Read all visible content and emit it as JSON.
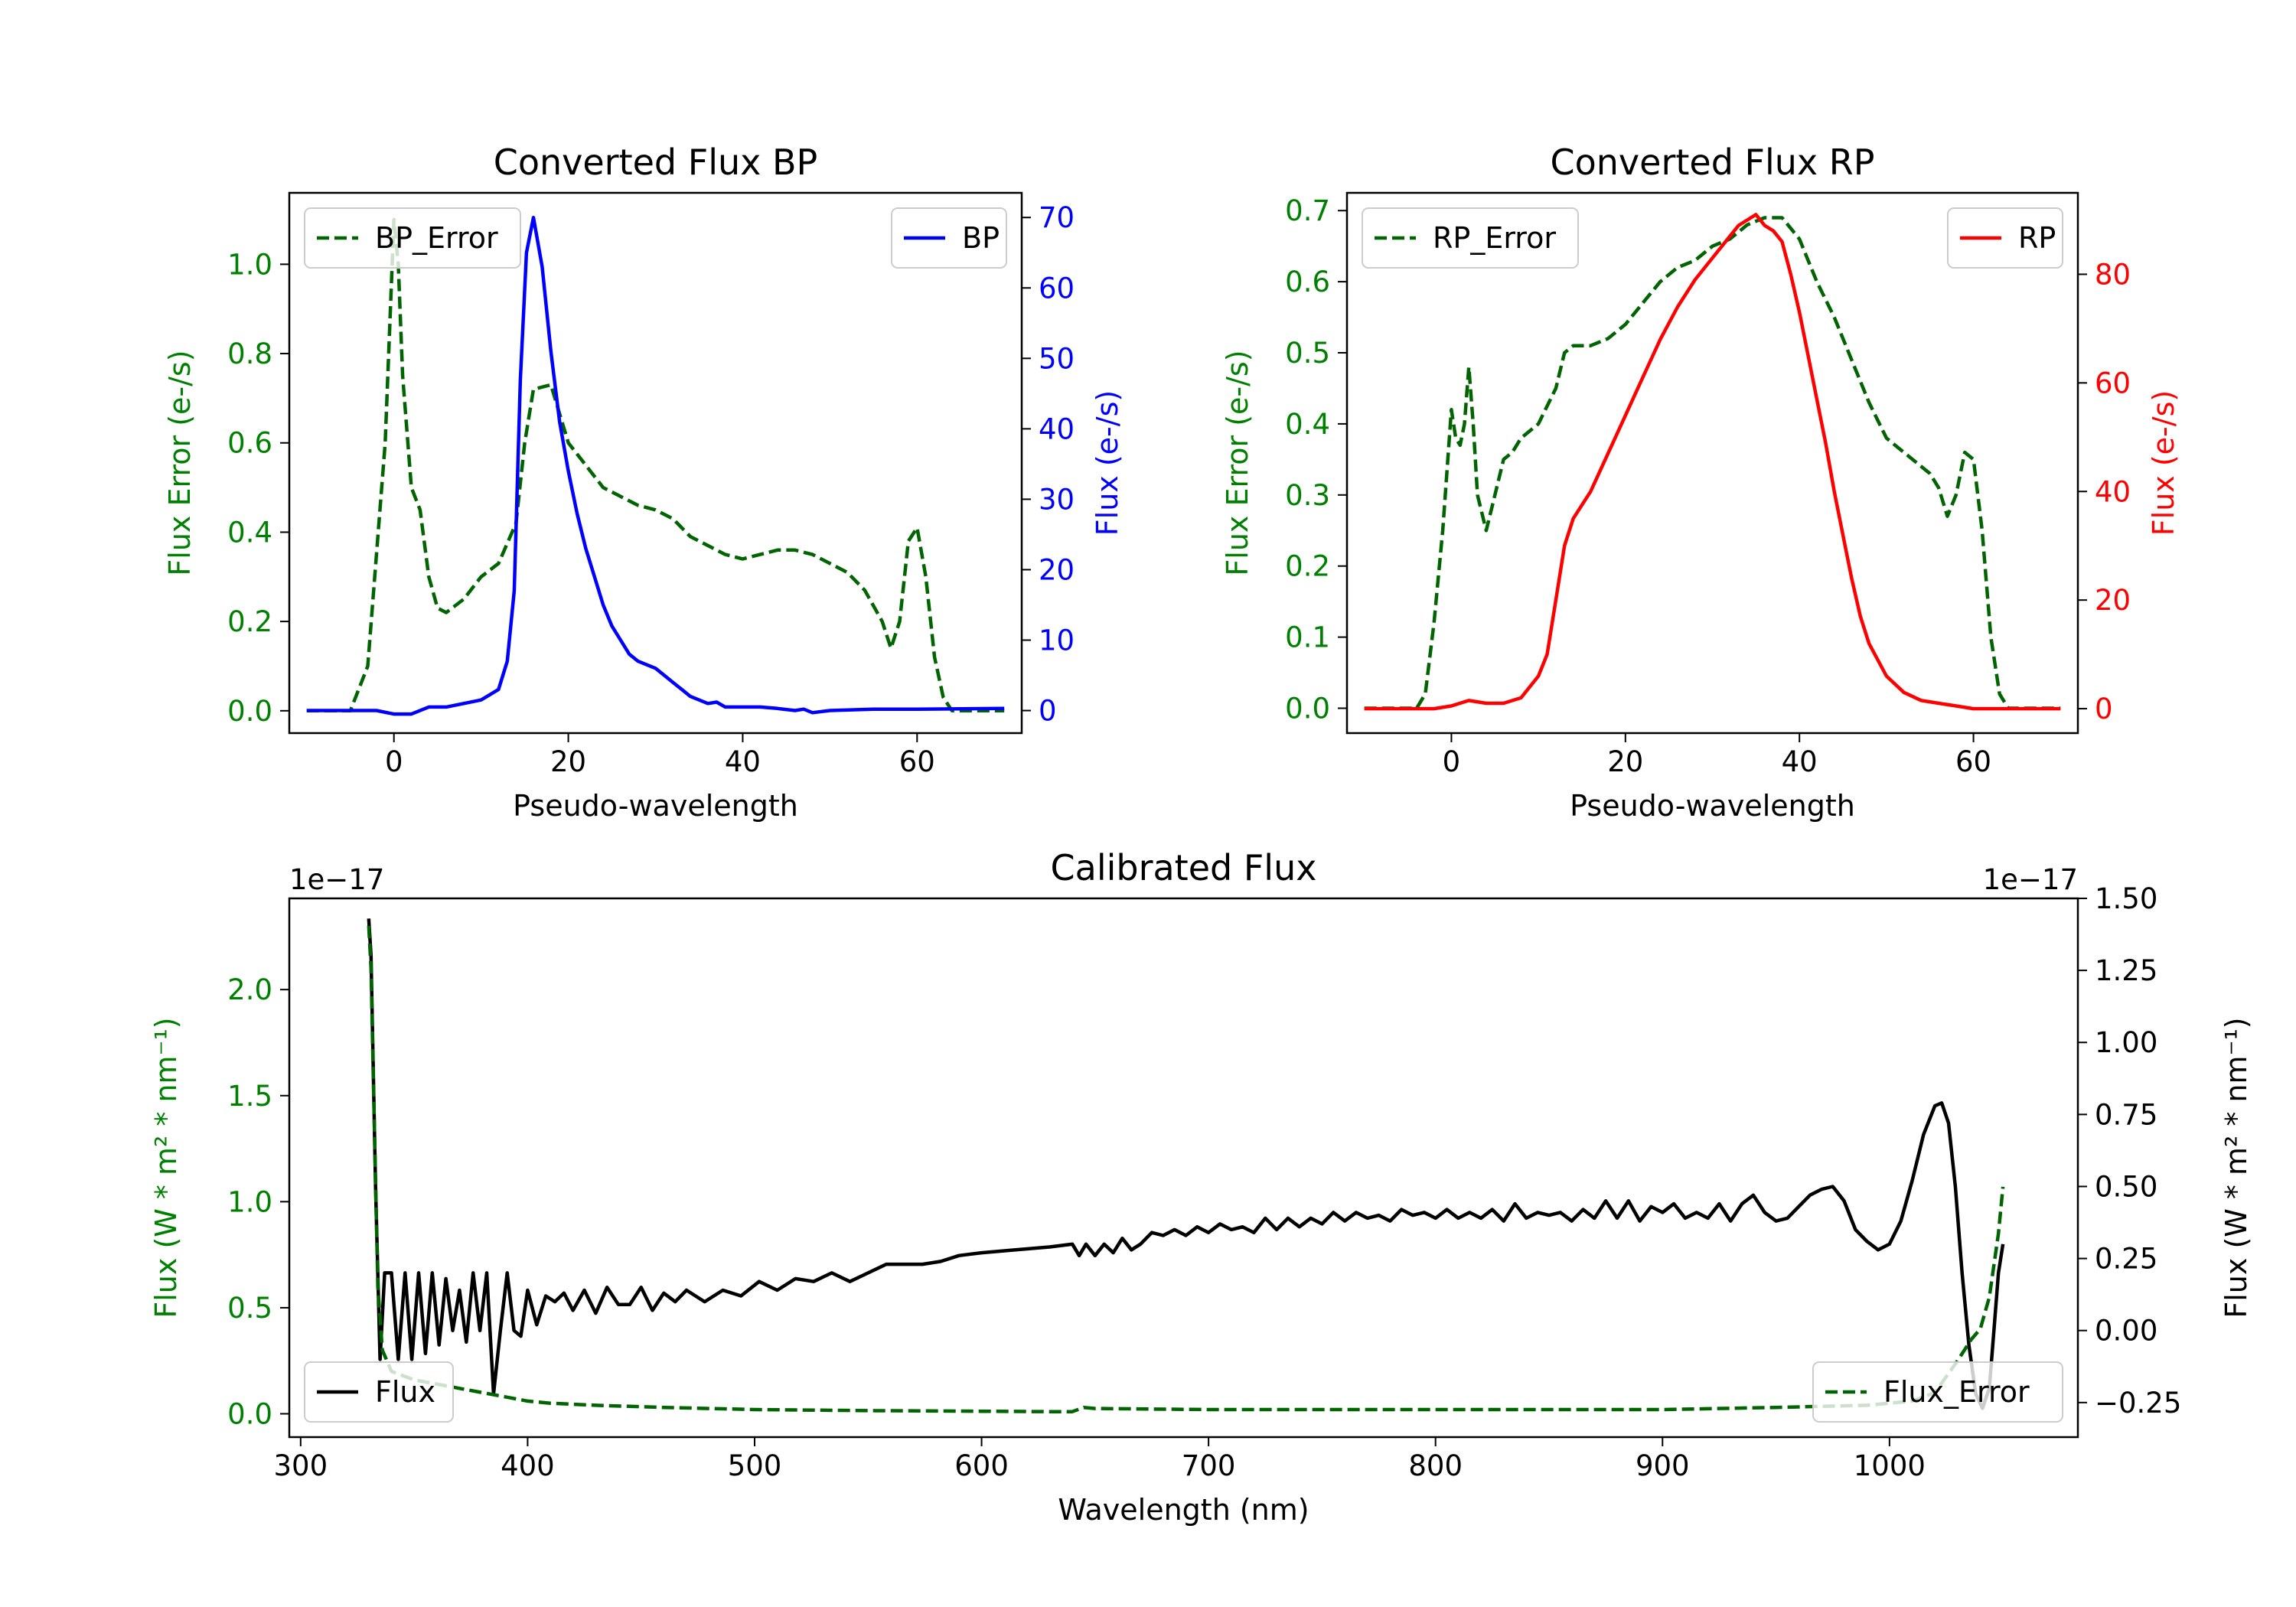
{
  "chart_data": [
    {
      "type": "line",
      "title": "Converted Flux BP",
      "xlabel": "Pseudo-wavelength",
      "ylabel_left": "Flux Error (e-/s)",
      "ylabel_right": "Flux (e-/s)",
      "xlim": [
        -12,
        72
      ],
      "ylim_left": [
        -0.05,
        1.16
      ],
      "ylim_right": [
        -3.2,
        73.5
      ],
      "xticks": [
        0,
        20,
        40,
        60
      ],
      "yticks_left": [
        0.0,
        0.2,
        0.4,
        0.6,
        0.8,
        1.0
      ],
      "yticks_right": [
        0,
        10,
        20,
        30,
        40,
        50,
        60,
        70
      ],
      "left_axis_color": "#008000",
      "right_axis_color": "#0000ff",
      "series": [
        {
          "name": "BP_Error",
          "axis": "left",
          "color": "#006400",
          "dash": true,
          "x": [
            -10,
            -5,
            -3,
            -1,
            0,
            0.5,
            1,
            2,
            3,
            4,
            5,
            6,
            8,
            10,
            12,
            14,
            15,
            16,
            18,
            20,
            22,
            24,
            26,
            28,
            30,
            32,
            34,
            36,
            38,
            40,
            42,
            44,
            46,
            48,
            50,
            52,
            54,
            56,
            57,
            58,
            59,
            60,
            61,
            62,
            63,
            64,
            70
          ],
          "y": [
            0.0,
            0.0,
            0.1,
            0.6,
            1.1,
            1.0,
            0.75,
            0.5,
            0.45,
            0.3,
            0.23,
            0.22,
            0.25,
            0.3,
            0.33,
            0.42,
            0.6,
            0.72,
            0.73,
            0.6,
            0.55,
            0.5,
            0.48,
            0.46,
            0.45,
            0.43,
            0.39,
            0.37,
            0.35,
            0.34,
            0.35,
            0.36,
            0.36,
            0.35,
            0.33,
            0.31,
            0.27,
            0.2,
            0.14,
            0.2,
            0.38,
            0.41,
            0.3,
            0.12,
            0.03,
            0.0,
            0.0
          ]
        },
        {
          "name": "BP",
          "axis": "right",
          "color": "#0000ff",
          "dash": false,
          "x": [
            -10,
            -2,
            0,
            2,
            4,
            6,
            8,
            10,
            12,
            13,
            13.8,
            14.5,
            15.2,
            16,
            17,
            18,
            19,
            20,
            21,
            22,
            23,
            24,
            25,
            26,
            27,
            28,
            29,
            30,
            31,
            32,
            33,
            34,
            35,
            36,
            37,
            38,
            40,
            42,
            44,
            46,
            47,
            48,
            50,
            55,
            60,
            70
          ],
          "y": [
            0,
            0,
            -0.5,
            -0.5,
            0.5,
            0.5,
            1,
            1.5,
            3,
            7,
            17,
            47,
            65,
            70,
            63,
            51,
            41,
            34,
            28,
            23,
            19,
            15,
            12,
            10,
            8,
            7,
            6.5,
            6,
            5,
            4,
            3,
            2,
            1.5,
            1,
            1.2,
            0.5,
            0.5,
            0.5,
            0.3,
            0,
            0.2,
            -0.3,
            0,
            0.2,
            0.2,
            0.3
          ]
        }
      ],
      "legend": [
        {
          "label": "BP_Error",
          "position": "upper left"
        },
        {
          "label": "BP",
          "position": "upper right"
        }
      ]
    },
    {
      "type": "line",
      "title": "Converted Flux RP",
      "xlabel": "Pseudo-wavelength",
      "ylabel_left": "Flux Error (e-/s)",
      "ylabel_right": "Flux (e-/s)",
      "xlim": [
        -12,
        72
      ],
      "ylim_left": [
        -0.035,
        0.725
      ],
      "ylim_right": [
        -4.5,
        95
      ],
      "xticks": [
        0,
        20,
        40,
        60
      ],
      "yticks_left": [
        0.0,
        0.1,
        0.2,
        0.3,
        0.4,
        0.5,
        0.6,
        0.7
      ],
      "yticks_right": [
        0,
        20,
        40,
        60,
        80
      ],
      "left_axis_color": "#008000",
      "right_axis_color": "#ff0000",
      "series": [
        {
          "name": "RP_Error",
          "axis": "left",
          "color": "#006400",
          "dash": true,
          "x": [
            -10,
            -4,
            -3,
            -2,
            -1,
            0,
            0.5,
            1,
            1.5,
            2,
            2.5,
            3,
            4,
            5,
            6,
            7,
            8,
            10,
            12,
            13,
            14,
            16,
            18,
            20,
            22,
            24,
            26,
            28,
            30,
            32,
            34,
            36,
            38,
            40,
            42,
            44,
            46,
            48,
            50,
            52,
            54,
            55,
            56,
            57,
            58,
            59,
            60,
            61,
            62,
            63,
            64,
            70
          ],
          "y": [
            0.0,
            0.0,
            0.02,
            0.12,
            0.25,
            0.42,
            0.38,
            0.37,
            0.4,
            0.48,
            0.4,
            0.3,
            0.25,
            0.3,
            0.35,
            0.36,
            0.38,
            0.4,
            0.45,
            0.5,
            0.51,
            0.51,
            0.52,
            0.54,
            0.57,
            0.6,
            0.62,
            0.63,
            0.65,
            0.66,
            0.68,
            0.69,
            0.69,
            0.66,
            0.6,
            0.55,
            0.49,
            0.43,
            0.38,
            0.36,
            0.34,
            0.33,
            0.31,
            0.27,
            0.3,
            0.36,
            0.35,
            0.25,
            0.1,
            0.02,
            0.0,
            0.0
          ]
        },
        {
          "name": "RP",
          "axis": "right",
          "color": "#ff0000",
          "dash": false,
          "x": [
            -10,
            -2,
            0,
            2,
            4,
            6,
            8,
            10,
            11,
            12,
            13,
            14,
            16,
            18,
            20,
            22,
            24,
            26,
            28,
            30,
            32,
            33,
            34,
            35,
            36,
            37,
            38,
            39,
            40,
            41,
            42,
            43,
            44,
            45,
            46,
            47,
            48,
            50,
            52,
            54,
            56,
            58,
            60,
            62,
            65,
            70
          ],
          "y": [
            0,
            0,
            0.5,
            1.5,
            1,
            1,
            2,
            6,
            10,
            20,
            30,
            35,
            40,
            47,
            54,
            61,
            68,
            74,
            79,
            83,
            87,
            89,
            90,
            91,
            89,
            88,
            86,
            80,
            73,
            65,
            57,
            49,
            40,
            32,
            24,
            17,
            12,
            6,
            3,
            1.5,
            1,
            0.5,
            0,
            0,
            0,
            0
          ]
        }
      ],
      "legend": [
        {
          "label": "RP_Error",
          "position": "upper left"
        },
        {
          "label": "RP",
          "position": "upper right"
        }
      ]
    },
    {
      "type": "line",
      "title": "Calibrated Flux",
      "xlabel": "Wavelength (nm)",
      "ylabel_left": "Flux (W * m² * nm⁻¹)",
      "ylabel_right": "Flux (W * m² * nm⁻¹)",
      "offset_left": "1e−17",
      "offset_right": "1e−17",
      "xlim": [
        295,
        1083
      ],
      "ylim_left": [
        -0.11,
        2.43
      ],
      "ylim_right": [
        -0.37,
        1.5
      ],
      "xticks": [
        300,
        400,
        500,
        600,
        700,
        800,
        900,
        1000
      ],
      "yticks_left": [
        0.0,
        0.5,
        1.0,
        1.5,
        2.0
      ],
      "yticks_right": [
        -0.25,
        0.0,
        0.25,
        0.5,
        0.75,
        1.0,
        1.25,
        1.5
      ],
      "tick_labels_left": [
        "0.0",
        "0.5",
        "1.0",
        "1.5",
        "2.0"
      ],
      "tick_labels_right": [
        "−0.25",
        "0.00",
        "0.25",
        "0.50",
        "0.75",
        "1.00",
        "1.25",
        "1.50"
      ],
      "left_axis_color": "#008000",
      "right_axis_color": "#000000",
      "series": [
        {
          "name": "Flux",
          "axis": "right",
          "color": "#000000",
          "dash": false,
          "x": [
            330,
            331,
            333,
            335,
            337,
            340,
            343,
            346,
            349,
            352,
            355,
            358,
            361,
            364,
            367,
            370,
            373,
            376,
            379,
            382,
            385,
            388,
            391,
            394,
            397,
            400,
            404,
            408,
            412,
            416,
            420,
            425,
            430,
            435,
            440,
            445,
            450,
            455,
            460,
            465,
            470,
            478,
            486,
            494,
            502,
            510,
            518,
            526,
            534,
            542,
            550,
            558,
            566,
            574,
            582,
            590,
            600,
            615,
            630,
            640,
            643,
            646,
            650,
            654,
            658,
            662,
            666,
            670,
            675,
            680,
            685,
            690,
            695,
            700,
            705,
            710,
            715,
            720,
            725,
            730,
            735,
            740,
            745,
            750,
            755,
            760,
            765,
            770,
            775,
            780,
            785,
            790,
            795,
            800,
            805,
            810,
            815,
            820,
            825,
            830,
            835,
            840,
            845,
            850,
            855,
            860,
            865,
            870,
            875,
            880,
            885,
            890,
            895,
            900,
            905,
            910,
            915,
            920,
            925,
            930,
            935,
            940,
            945,
            950,
            955,
            960,
            965,
            970,
            975,
            980,
            985,
            990,
            995,
            1000,
            1005,
            1010,
            1015,
            1020,
            1023,
            1026,
            1029,
            1032,
            1035,
            1038,
            1041,
            1044,
            1046,
            1048,
            1050
          ],
          "y": [
            1.43,
            1.3,
            0.5,
            -0.1,
            0.2,
            0.2,
            -0.1,
            0.2,
            -0.1,
            0.2,
            -0.08,
            0.2,
            -0.05,
            0.18,
            0.0,
            0.14,
            -0.04,
            0.2,
            0.0,
            0.2,
            -0.22,
            0.0,
            0.2,
            0.0,
            -0.02,
            0.14,
            0.02,
            0.12,
            0.1,
            0.13,
            0.07,
            0.14,
            0.06,
            0.15,
            0.09,
            0.09,
            0.15,
            0.07,
            0.13,
            0.1,
            0.14,
            0.1,
            0.14,
            0.12,
            0.17,
            0.14,
            0.18,
            0.17,
            0.2,
            0.17,
            0.2,
            0.23,
            0.23,
            0.23,
            0.24,
            0.26,
            0.27,
            0.28,
            0.29,
            0.3,
            0.26,
            0.3,
            0.26,
            0.3,
            0.27,
            0.32,
            0.28,
            0.3,
            0.34,
            0.33,
            0.35,
            0.33,
            0.36,
            0.34,
            0.37,
            0.35,
            0.36,
            0.34,
            0.39,
            0.35,
            0.39,
            0.36,
            0.39,
            0.37,
            0.41,
            0.38,
            0.41,
            0.39,
            0.4,
            0.38,
            0.42,
            0.4,
            0.41,
            0.39,
            0.42,
            0.39,
            0.41,
            0.39,
            0.42,
            0.38,
            0.44,
            0.39,
            0.41,
            0.4,
            0.41,
            0.38,
            0.42,
            0.39,
            0.45,
            0.39,
            0.45,
            0.38,
            0.43,
            0.41,
            0.44,
            0.39,
            0.41,
            0.39,
            0.44,
            0.38,
            0.44,
            0.47,
            0.41,
            0.38,
            0.39,
            0.43,
            0.47,
            0.49,
            0.5,
            0.45,
            0.35,
            0.31,
            0.28,
            0.3,
            0.38,
            0.52,
            0.68,
            0.78,
            0.79,
            0.72,
            0.5,
            0.2,
            -0.05,
            -0.22,
            -0.27,
            -0.2,
            0.0,
            0.2,
            0.3
          ]
        },
        {
          "name": "Flux_Error",
          "axis": "left",
          "color": "#006400",
          "dash": true,
          "x": [
            330,
            331,
            332,
            334,
            336,
            340,
            345,
            350,
            360,
            370,
            380,
            390,
            400,
            410,
            430,
            460,
            500,
            550,
            600,
            630,
            640,
            645,
            650,
            700,
            800,
            900,
            950,
            990,
            1010,
            1020,
            1030,
            1036,
            1040,
            1044,
            1048,
            1050
          ],
          "y": [
            2.3,
            2.1,
            1.6,
            0.6,
            0.3,
            0.2,
            0.18,
            0.16,
            0.14,
            0.12,
            0.1,
            0.08,
            0.06,
            0.05,
            0.04,
            0.03,
            0.02,
            0.015,
            0.012,
            0.01,
            0.01,
            0.03,
            0.025,
            0.02,
            0.02,
            0.02,
            0.03,
            0.04,
            0.06,
            0.1,
            0.25,
            0.35,
            0.4,
            0.55,
            0.85,
            1.07
          ]
        }
      ],
      "legend": [
        {
          "label": "Flux",
          "position": "lower left"
        },
        {
          "label": "Flux_Error",
          "position": "lower right"
        }
      ]
    }
  ]
}
